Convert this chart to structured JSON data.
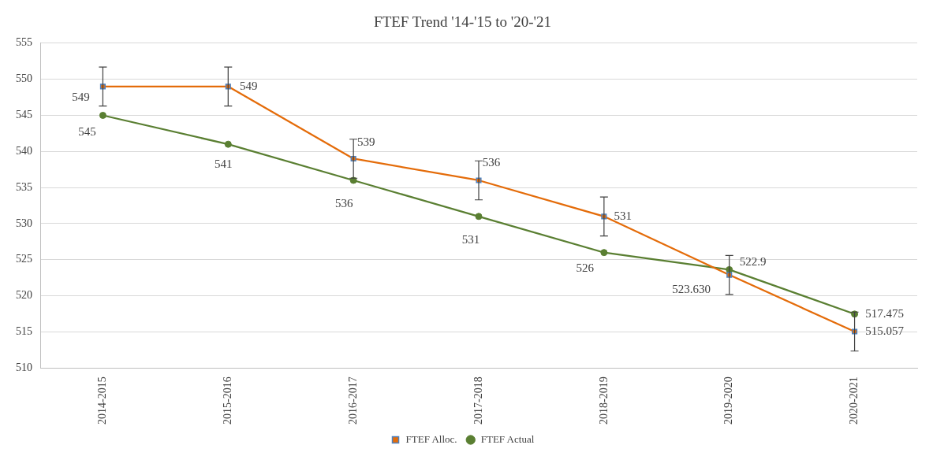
{
  "chart_data": {
    "type": "line",
    "title": "FTEF Trend '14-'15 to '20-'21",
    "categories": [
      "2014-2015",
      "2015-2016",
      "2016-2017",
      "2017-2018",
      "2018-2019",
      "2019-2020",
      "2020-2021"
    ],
    "series": [
      {
        "name": "FTEF Alloc.",
        "color": "#e46c0a",
        "marker": "square",
        "values": [
          549,
          549,
          539,
          536,
          531,
          522.9,
          515.057
        ],
        "errors": [
          2.7,
          2.7,
          2.7,
          2.7,
          2.7,
          2.7,
          2.7
        ],
        "value_labels": [
          "549",
          "549",
          "539",
          "536",
          "531",
          "522.9",
          "515.057"
        ]
      },
      {
        "name": "FTEF Actual",
        "color": "#5a7f32",
        "marker": "circle",
        "values": [
          545,
          541,
          536,
          531,
          526,
          523.63,
          517.475
        ],
        "value_labels": [
          "545",
          "541",
          "536",
          "531",
          "526",
          "523.630",
          "517.475"
        ]
      }
    ],
    "ylim": [
      510,
      555
    ],
    "yticks": [
      510,
      515,
      520,
      525,
      530,
      535,
      540,
      545,
      550,
      555
    ],
    "grid": "y",
    "legend": "bottom",
    "line_style": "solid"
  }
}
